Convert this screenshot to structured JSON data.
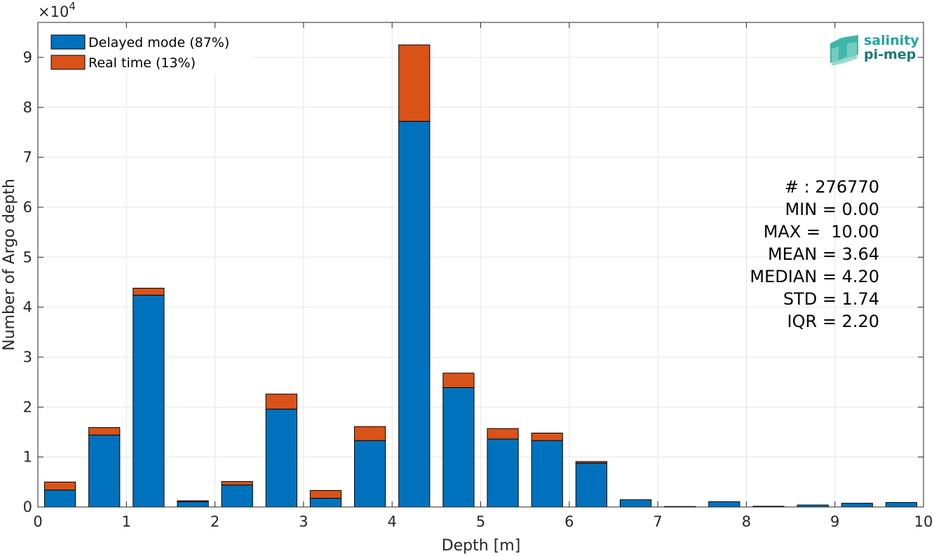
{
  "chart_data": {
    "type": "bar",
    "stacked": true,
    "xlabel": "Depth [m]",
    "ylabel": "Number of Argo depth",
    "y_exponent_label": "×10",
    "y_exponent_power": "4",
    "y_multiplier": 10000,
    "xlim": [
      0,
      10
    ],
    "ylim": [
      0,
      97000
    ],
    "grid": true,
    "legend_position": "top-left",
    "x_ticks": [
      "0",
      "1",
      "2",
      "3",
      "4",
      "5",
      "6",
      "7",
      "8",
      "9",
      "10"
    ],
    "y_ticks": [
      "0",
      "1",
      "2",
      "3",
      "4",
      "5",
      "6",
      "7",
      "8",
      "9"
    ],
    "bin_centers": [
      0.25,
      0.75,
      1.25,
      1.75,
      2.25,
      2.75,
      3.25,
      3.75,
      4.25,
      4.75,
      5.25,
      5.75,
      6.25,
      6.75,
      7.25,
      7.75,
      8.25,
      8.75,
      9.25,
      9.75
    ],
    "series": [
      {
        "name": "Delayed mode (87%)",
        "color": "#0072BD",
        "values": [
          3400,
          14400,
          42400,
          1050,
          4400,
          19600,
          1750,
          13300,
          77200,
          23900,
          13600,
          13300,
          8800,
          1450,
          100,
          1050,
          150,
          400,
          750,
          900
        ]
      },
      {
        "name": "Real time (13%)",
        "color": "#D95319",
        "values": [
          1600,
          1500,
          1400,
          200,
          700,
          3000,
          1550,
          2800,
          15300,
          2900,
          2100,
          1500,
          300,
          0,
          0,
          0,
          0,
          0,
          0,
          0
        ]
      }
    ],
    "annotations": [
      "# : 276770",
      "MIN = 0.00",
      "MAX =  10.00",
      "MEAN = 3.64",
      "MEDIAN = 4.20",
      "STD = 1.74",
      "IQR = 2.20"
    ]
  },
  "logo": {
    "line1": "salinity",
    "line2": "pi-mep",
    "color1": "#1FA79A",
    "color2": "#1A7A78"
  }
}
